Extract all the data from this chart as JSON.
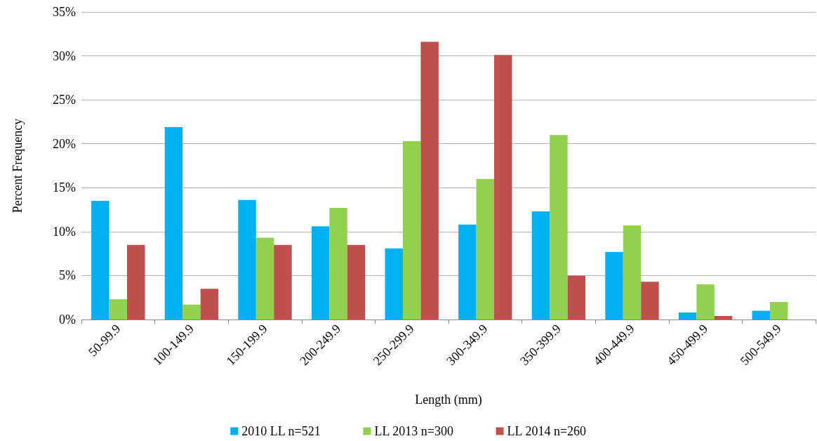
{
  "chart_data": {
    "type": "bar",
    "xlabel": "Length (mm)",
    "ylabel": "Percent Frequency",
    "categories": [
      "50-99.9",
      "100-149.9",
      "150-199.9",
      "200-249.9",
      "250-299.9",
      "300-349.9",
      "350-399.9",
      "400-449.9",
      "450-499.9",
      "500-549.9"
    ],
    "series": [
      {
        "name": "2010 LL n=521",
        "color": "#00b0f0",
        "values": [
          13.5,
          21.9,
          13.6,
          10.6,
          8.1,
          10.8,
          12.3,
          7.7,
          0.8,
          1.0
        ]
      },
      {
        "name": "LL 2013 n=300",
        "color": "#92d050",
        "values": [
          2.3,
          1.7,
          9.3,
          12.7,
          20.3,
          16.0,
          21.0,
          10.7,
          4.0,
          2.0
        ]
      },
      {
        "name": "LL 2014 n=260",
        "color": "#c0504d",
        "values": [
          8.5,
          3.5,
          8.5,
          8.5,
          31.6,
          30.1,
          5.0,
          4.3,
          0.4,
          null
        ]
      }
    ],
    "ylim": [
      0,
      35
    ],
    "yticks": [
      {
        "value": 0,
        "label": "0%"
      },
      {
        "value": 5,
        "label": "5%"
      },
      {
        "value": 10,
        "label": "10%"
      },
      {
        "value": 15,
        "label": "15%"
      },
      {
        "value": 20,
        "label": "20%"
      },
      {
        "value": 25,
        "label": "25%"
      },
      {
        "value": 30,
        "label": "30%"
      },
      {
        "value": 35,
        "label": "35%"
      }
    ],
    "grid": "y",
    "legend": "bottom"
  }
}
